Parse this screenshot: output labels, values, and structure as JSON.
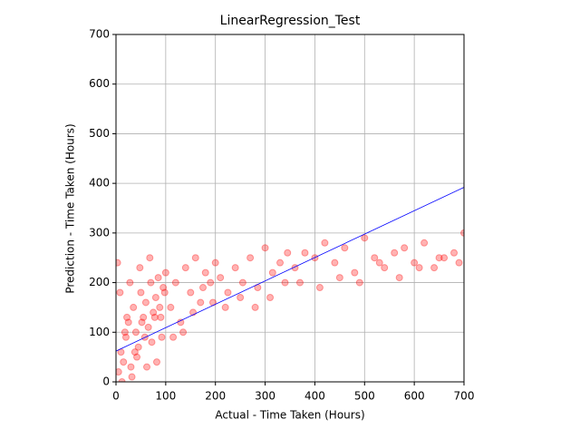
{
  "chart_data": {
    "type": "scatter",
    "title": "LinearRegression_Test",
    "xlabel": "Actual - Time Taken (Hours)",
    "ylabel": "Prediction - Time Taken (Hours)",
    "xlim": [
      0,
      700
    ],
    "ylim": [
      0,
      700
    ],
    "xticks": [
      0,
      100,
      200,
      300,
      400,
      500,
      600,
      700
    ],
    "yticks": [
      0,
      100,
      200,
      300,
      400,
      500,
      600,
      700
    ],
    "grid": true,
    "series": [
      {
        "type": "scatter",
        "color": "red",
        "x": [
          5,
          10,
          15,
          20,
          25,
          30,
          35,
          40,
          45,
          50,
          55,
          60,
          65,
          70,
          75,
          80,
          85,
          90,
          95,
          100,
          8,
          18,
          28,
          38,
          48,
          58,
          68,
          78,
          88,
          98,
          3,
          12,
          22,
          32,
          42,
          52,
          62,
          72,
          82,
          92,
          110,
          120,
          130,
          140,
          150,
          160,
          170,
          180,
          190,
          200,
          115,
          135,
          155,
          175,
          195,
          210,
          225,
          240,
          255,
          270,
          285,
          300,
          315,
          330,
          345,
          220,
          250,
          280,
          310,
          340,
          360,
          380,
          400,
          420,
          440,
          460,
          480,
          500,
          520,
          540,
          560,
          580,
          600,
          620,
          640,
          660,
          680,
          700,
          370,
          410,
          450,
          490,
          530,
          570,
          610,
          650,
          690
        ],
        "values": [
          20,
          60,
          40,
          90,
          120,
          30,
          150,
          100,
          70,
          180,
          130,
          160,
          110,
          200,
          140,
          170,
          210,
          130,
          190,
          220,
          180,
          100,
          200,
          60,
          230,
          90,
          250,
          130,
          150,
          180,
          240,
          0,
          130,
          10,
          50,
          120,
          30,
          80,
          40,
          90,
          150,
          200,
          120,
          230,
          180,
          250,
          160,
          220,
          200,
          240,
          90,
          100,
          140,
          190,
          160,
          210,
          180,
          230,
          200,
          250,
          190,
          270,
          220,
          240,
          260,
          150,
          170,
          150,
          170,
          200,
          230,
          260,
          250,
          280,
          240,
          270,
          220,
          290,
          250,
          230,
          260,
          270,
          240,
          280,
          230,
          250,
          260,
          300,
          200,
          190,
          210,
          200,
          240,
          210,
          230,
          250,
          240
        ]
      },
      {
        "type": "line",
        "color": "blue",
        "x": [
          0,
          700
        ],
        "values": [
          62,
          392
        ]
      }
    ]
  }
}
